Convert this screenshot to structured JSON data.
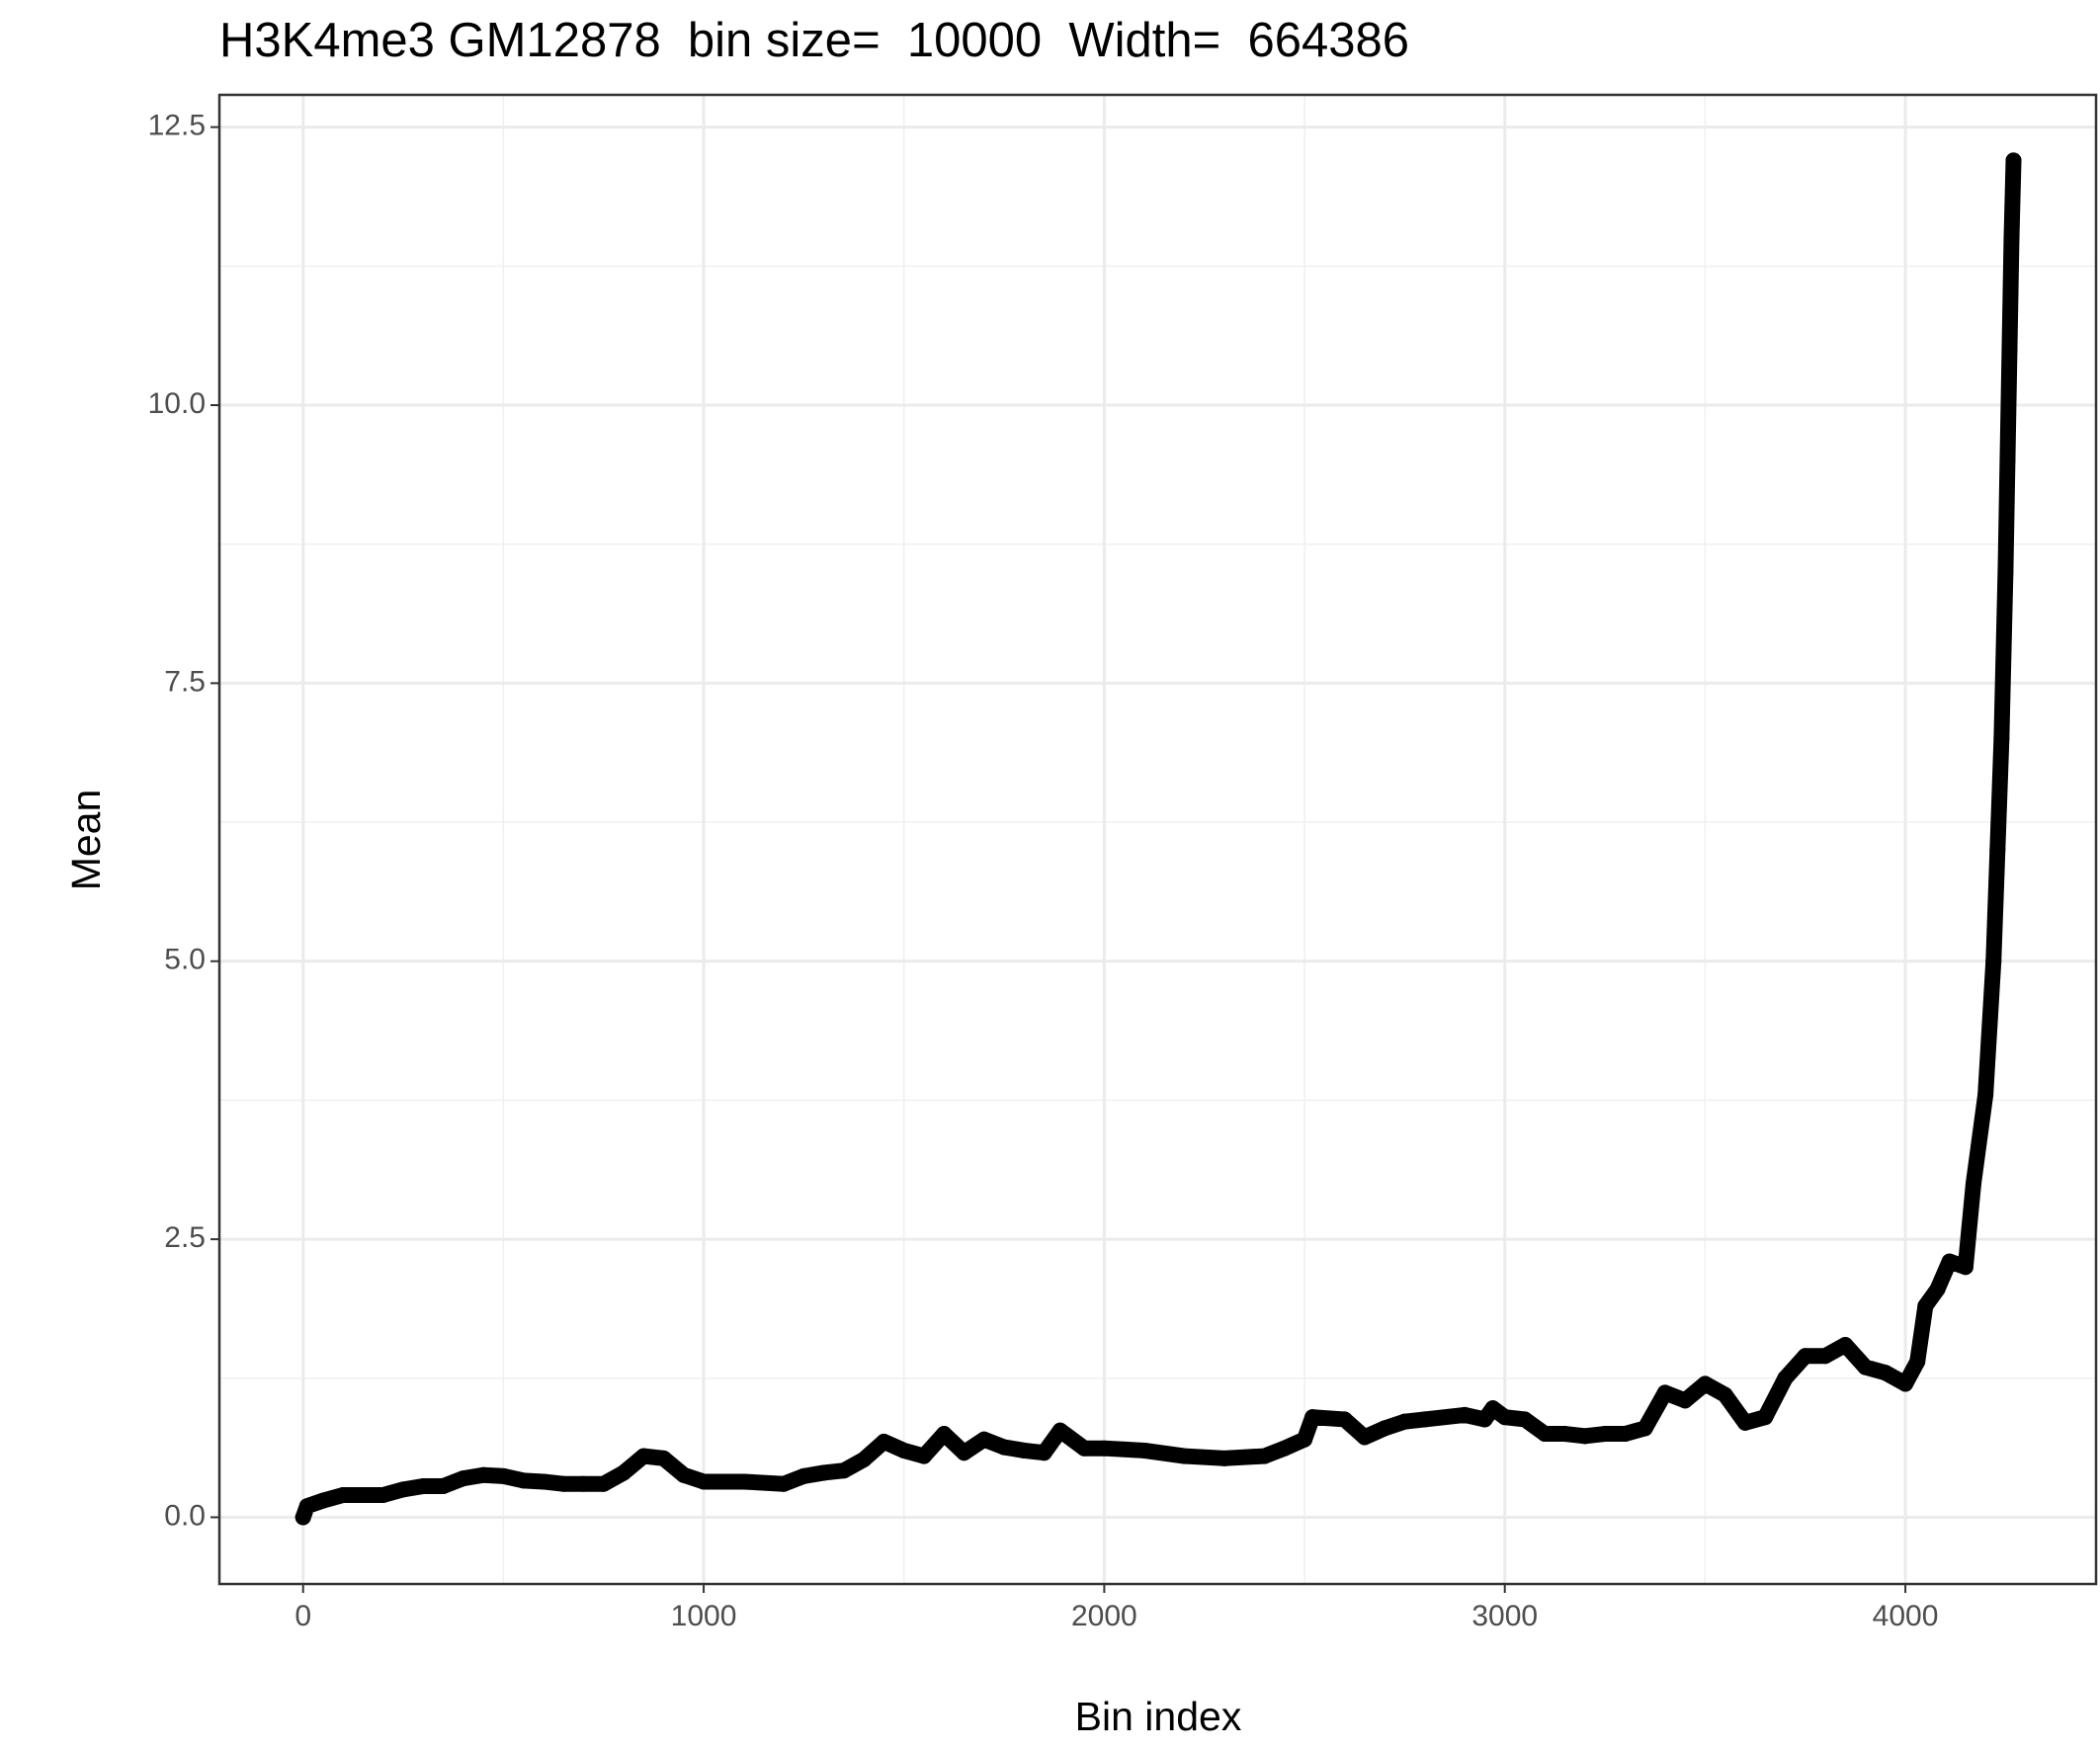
{
  "chart_data": {
    "type": "scatter",
    "title": "H3K4me3 GM12878  bin size=  10000  Width=  664386",
    "x_label": "Bin index",
    "y_label": "Mean",
    "xlim": [
      -209,
      4476
    ],
    "ylim": [
      -0.6,
      12.79
    ],
    "xticks": [
      0,
      1000,
      2000,
      3000,
      4000
    ],
    "yticks": [
      {
        "value": 0,
        "label": "0.0"
      },
      2.5,
      {
        "value": 5,
        "label": "5.0"
      },
      7.5,
      {
        "value": 10,
        "label": "10.0"
      },
      12.5
    ],
    "grid": true,
    "series": [
      {
        "name": "Mean",
        "color": "#000000",
        "x": [
          0,
          10,
          50,
          100,
          200,
          250,
          300,
          350,
          400,
          450,
          500,
          550,
          600,
          650,
          700,
          750,
          800,
          850,
          900,
          950,
          1000,
          1100,
          1200,
          1250,
          1300,
          1350,
          1400,
          1450,
          1500,
          1550,
          1600,
          1650,
          1700,
          1750,
          1800,
          1850,
          1890,
          1950,
          2000,
          2100,
          2200,
          2300,
          2400,
          2450,
          2500,
          2520,
          2600,
          2650,
          2700,
          2750,
          2800,
          2900,
          2950,
          2970,
          3000,
          3050,
          3100,
          3150,
          3200,
          3250,
          3300,
          3350,
          3400,
          3450,
          3500,
          3550,
          3600,
          3650,
          3700,
          3750,
          3800,
          3850,
          3900,
          3950,
          4000,
          4030,
          4050,
          4080,
          4110,
          4150,
          4170,
          4200,
          4220,
          4230,
          4240,
          4250,
          4255,
          4260,
          4265,
          4270
        ],
        "values": [
          0.0,
          0.1,
          0.15,
          0.2,
          0.2,
          0.25,
          0.28,
          0.28,
          0.35,
          0.38,
          0.37,
          0.33,
          0.32,
          0.3,
          0.3,
          0.3,
          0.4,
          0.55,
          0.53,
          0.38,
          0.32,
          0.32,
          0.3,
          0.37,
          0.4,
          0.42,
          0.52,
          0.68,
          0.6,
          0.55,
          0.75,
          0.58,
          0.7,
          0.63,
          0.6,
          0.58,
          0.78,
          0.62,
          0.62,
          0.6,
          0.55,
          0.53,
          0.55,
          0.62,
          0.7,
          0.9,
          0.88,
          0.72,
          0.8,
          0.86,
          0.88,
          0.92,
          0.88,
          0.98,
          0.9,
          0.88,
          0.75,
          0.75,
          0.73,
          0.75,
          0.75,
          0.8,
          1.12,
          1.05,
          1.2,
          1.1,
          0.85,
          0.9,
          1.25,
          1.45,
          1.45,
          1.55,
          1.35,
          1.3,
          1.2,
          1.4,
          1.9,
          2.05,
          2.3,
          2.25,
          3.0,
          3.8,
          5.0,
          6.0,
          7.0,
          8.5,
          9.5,
          10.5,
          11.5,
          12.2
        ]
      }
    ]
  }
}
